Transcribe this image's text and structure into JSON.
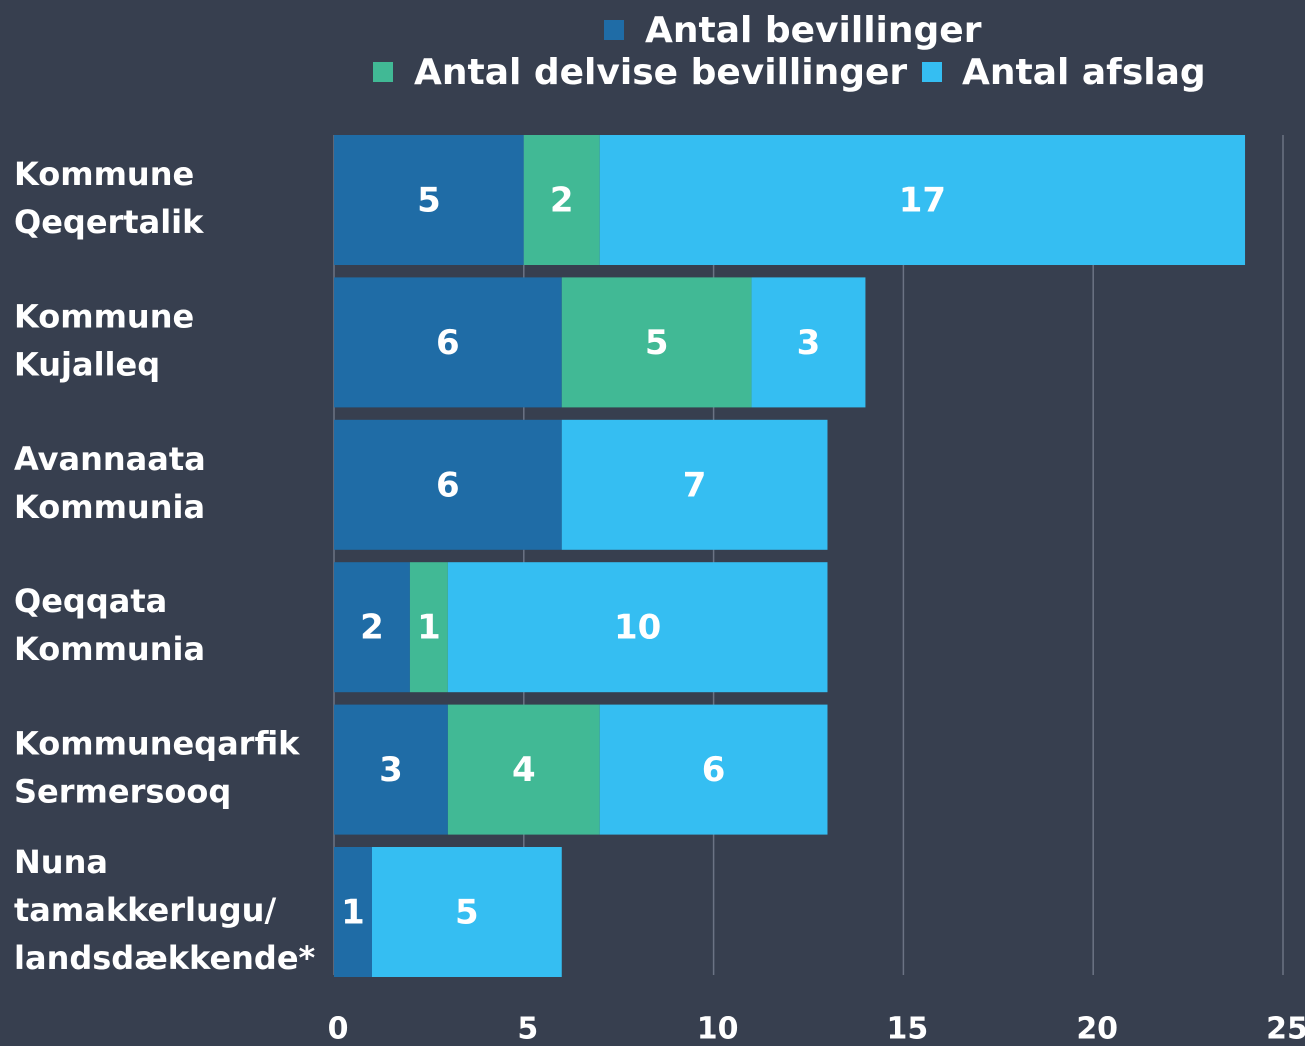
{
  "chart_data": {
    "type": "stacked-bar-horizontal",
    "categories": [
      "Kommune Qeqertalik",
      "Kommune Kujalleq",
      "Avannaata Kommunia",
      "Qeqqata Kommunia",
      "Kommuneqarfik Sermersooq",
      "Nuna tamakkerlugu/ landsdækkende*"
    ],
    "series": [
      {
        "name": "Antal bevillinger",
        "color": "#1f6ca6",
        "values": [
          5,
          6,
          6,
          2,
          3,
          1
        ]
      },
      {
        "name": "Antal delvise bevillinger",
        "color": "#41b995",
        "values": [
          2,
          5,
          null,
          1,
          4,
          null
        ]
      },
      {
        "name": "Antal afslag",
        "color": "#35bef2",
        "values": [
          17,
          3,
          7,
          10,
          6,
          5
        ]
      }
    ],
    "xlim": [
      0,
      25
    ],
    "xticks": [
      0,
      5,
      10,
      15,
      20,
      25
    ],
    "grid": true,
    "legend": "top"
  }
}
